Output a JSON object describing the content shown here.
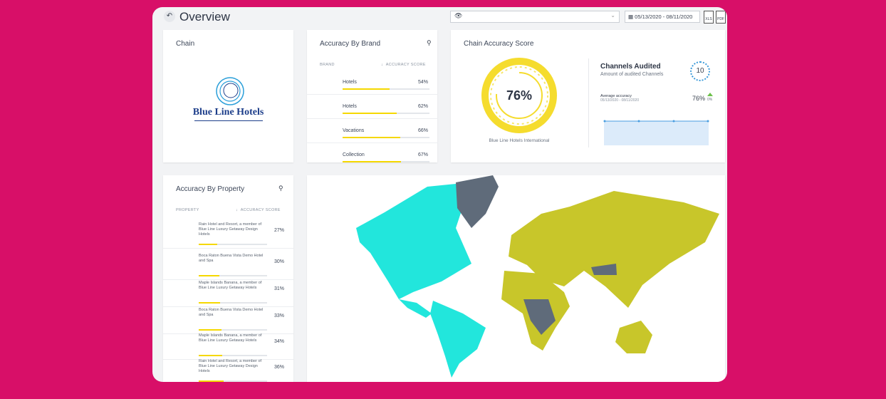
{
  "header": {
    "title": "Overview",
    "date_range": "05/13/2020 - 08/11/2020",
    "export": [
      "XLS",
      "PDF"
    ]
  },
  "chain": {
    "title": "Chain",
    "logo_text": "Blue Line Hotels"
  },
  "brand": {
    "title": "Accuracy By Brand",
    "columns": [
      "BRAND",
      "ACCURACY SCORE"
    ],
    "rows": [
      {
        "name": "Hotels",
        "score": 54,
        "score_label": "54%"
      },
      {
        "name": "Hotels",
        "score": 62,
        "score_label": "62%"
      },
      {
        "name": "Vacations",
        "score": 66,
        "score_label": "66%"
      },
      {
        "name": "Collection",
        "score": 67,
        "score_label": "67%"
      }
    ]
  },
  "chain_score": {
    "title": "Chain Accuracy Score",
    "score": 76,
    "score_label": "76%",
    "caption": "Blue Line Hotels International",
    "channels_title": "Channels Audited",
    "channels_subtitle": "Amount of audited Channels",
    "channels": 10,
    "average_label": "Average accuracy",
    "average_dates": "05/13/2020 - 08/11/2020",
    "average": 76,
    "average_label_value": "76%",
    "change": 0,
    "change_label": "0%"
  },
  "property": {
    "title": "Accuracy By Property",
    "columns": [
      "PROPERTY",
      "ACCURACY SCORE"
    ],
    "rows": [
      {
        "name": "Rain Hotel and Resort, a member of Blue Line Luxury Getaway Design Hotels",
        "score": 27,
        "score_label": "27%"
      },
      {
        "name": "Boca Raton Buena Vista Demo Hotel and Spa",
        "score": 30,
        "score_label": "30%"
      },
      {
        "name": "Maple Islands Banana, a member of Blue Line  Luxury Getaway Hotels",
        "score": 31,
        "score_label": "31%"
      },
      {
        "name": "Boca Raton Buena Vista Demo Hotel and Spa",
        "score": 33,
        "score_label": "33%"
      },
      {
        "name": "Maple Islands Banana, a member of Blue Line  Luxury Getaway Hotels",
        "score": 34,
        "score_label": "34%"
      },
      {
        "name": "Rain Hotel and Resort, a member of Blue Line Luxury Getaway Design Hotels",
        "score": 36,
        "score_label": "36%"
      }
    ]
  }
}
